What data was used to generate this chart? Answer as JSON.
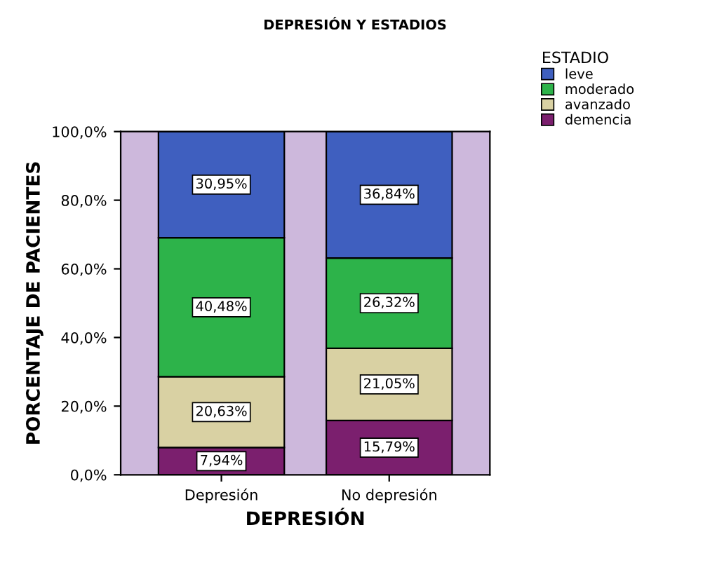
{
  "chart_data": {
    "type": "bar",
    "title": "DEPRESIÓN Y ESTADIOS",
    "xlabel": "DEPRESIÓN",
    "ylabel": "PORCENTAJE DE PACIENTES",
    "legend_title": "ESTADIO",
    "categories": [
      "Depresión",
      "No depresión"
    ],
    "stacked": true,
    "legend": "top right",
    "ylim": [
      0,
      100
    ],
    "yticks": [
      {
        "value": 0,
        "label": "0,0%"
      },
      {
        "value": 20,
        "label": "20,0%"
      },
      {
        "value": 40,
        "label": "40,0%"
      },
      {
        "value": 60,
        "label": "60,0%"
      },
      {
        "value": 80,
        "label": "80,0%"
      },
      {
        "value": 100,
        "label": "100,0%"
      }
    ],
    "series": [
      {
        "name": "demencia",
        "color": "#7b1f6e",
        "values": [
          7.94,
          15.79
        ],
        "value_labels": [
          "7,94%",
          "15,79%"
        ]
      },
      {
        "name": "avanzado",
        "color": "#d9d1a3",
        "values": [
          20.63,
          21.05
        ],
        "value_labels": [
          "20,63%",
          "21,05%"
        ]
      },
      {
        "name": "moderado",
        "color": "#2db34a",
        "values": [
          40.48,
          26.32
        ],
        "value_labels": [
          "40,48%",
          "26,32%"
        ]
      },
      {
        "name": "leve",
        "color": "#3f5fbf",
        "values": [
          30.95,
          36.84
        ],
        "value_labels": [
          "30,95%",
          "36,84%"
        ]
      }
    ]
  }
}
